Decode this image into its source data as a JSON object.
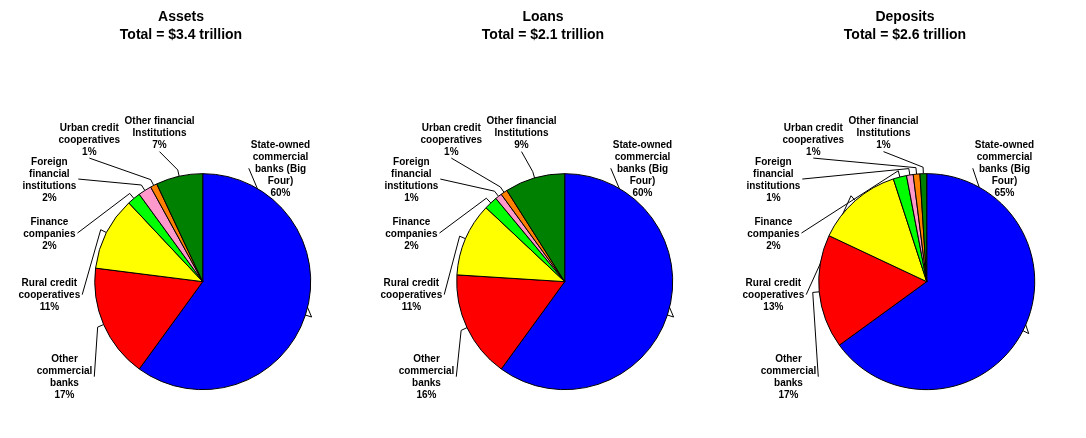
{
  "chart_data": [
    {
      "type": "pie",
      "title": "Assets",
      "subtitle": "Total = $3.4 trillion",
      "categories": [
        "State-owned commercial banks (Big Four)",
        "Other commercial banks",
        "Rural credit cooperatives",
        "Finance companies",
        "Foreign financial institutions",
        "Urban credit cooperatives",
        "Other financial Institutions"
      ],
      "values": [
        60,
        17,
        11,
        2,
        2,
        1,
        7
      ],
      "value_labels": [
        "60%",
        "17%",
        "11%",
        "2%",
        "2%",
        "1%",
        "7%"
      ],
      "colors": [
        "#0000ff",
        "#ff0000",
        "#ffff00",
        "#00ff00",
        "#ff99cc",
        "#ff8000",
        "#008000"
      ]
    },
    {
      "type": "pie",
      "title": "Loans",
      "subtitle": "Total = $2.1 trillion",
      "categories": [
        "State-owned commercial banks (Big Four)",
        "Other commercial banks",
        "Rural credit cooperatives",
        "Finance companies",
        "Foreign financial institutions",
        "Urban credit cooperatives",
        "Other financial Institutions"
      ],
      "values": [
        60,
        16,
        11,
        2,
        1,
        1,
        9
      ],
      "value_labels": [
        "60%",
        "16%",
        "11%",
        "2%",
        "1%",
        "1%",
        "9%"
      ],
      "colors": [
        "#0000ff",
        "#ff0000",
        "#ffff00",
        "#00ff00",
        "#ff99cc",
        "#ff8000",
        "#008000"
      ]
    },
    {
      "type": "pie",
      "title": "Deposits",
      "subtitle": "Total = $2.6 trillion",
      "categories": [
        "State-owned commercial banks (Big Four)",
        "Other commercial banks",
        "Rural credit cooperatives",
        "Finance companies",
        "Foreign financial institutions",
        "Urban credit cooperatives",
        "Other financial Institutions"
      ],
      "values": [
        65,
        17,
        13,
        2,
        1,
        1,
        1
      ],
      "value_labels": [
        "65%",
        "17%",
        "13%",
        "2%",
        "1%",
        "1%",
        "1%"
      ],
      "colors": [
        "#0000ff",
        "#ff0000",
        "#ffff00",
        "#00ff00",
        "#ff99cc",
        "#ff8000",
        "#008000"
      ]
    }
  ]
}
